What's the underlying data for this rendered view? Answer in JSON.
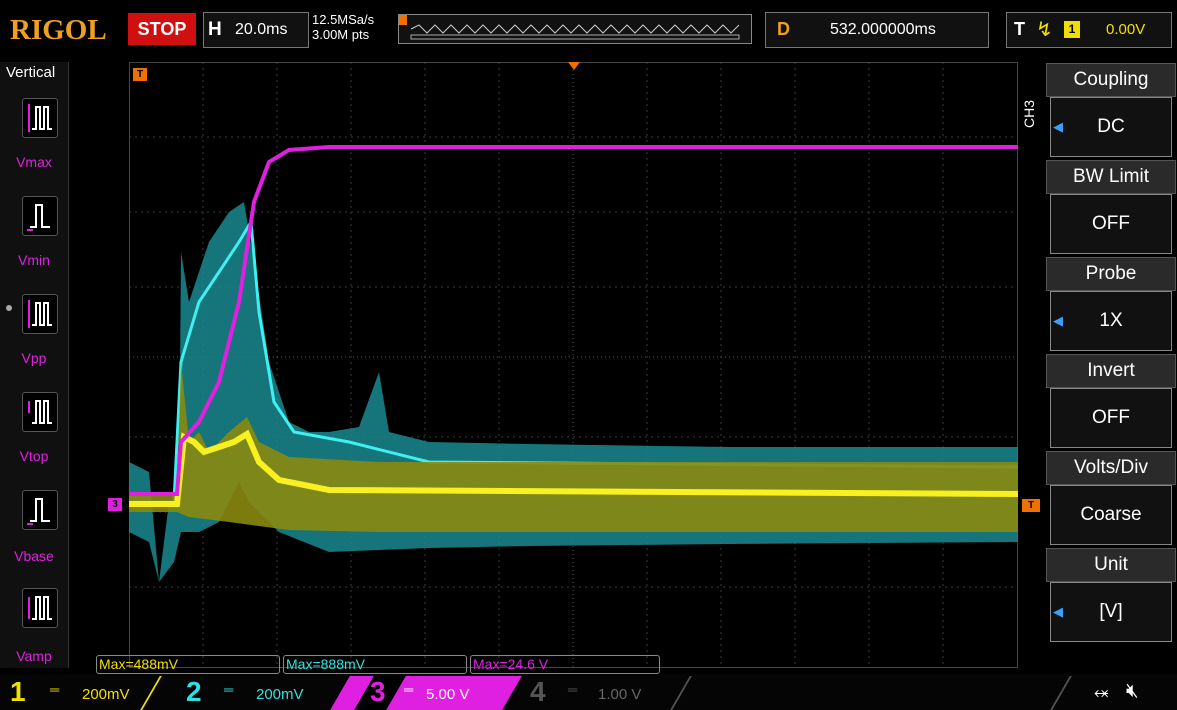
{
  "header": {
    "logo": "RIGOL",
    "run_state": "STOP",
    "timebase_letter": "H",
    "timebase": "20.0ms",
    "sample_rate": "12.5MSa/s",
    "memory_depth": "3.00M pts",
    "delay_letter": "D",
    "delay": "532.000000ms",
    "trigger_letter": "T",
    "trigger_slope_icon": "rising-edge-icon",
    "trigger_source": "1",
    "trigger_level": "0.00V"
  },
  "left_menu": {
    "title": "Vertical",
    "items": [
      {
        "label": "Vmax",
        "icon": "vmax-icon"
      },
      {
        "label": "Vmin",
        "icon": "vmin-icon"
      },
      {
        "label": "Vpp",
        "icon": "vpp-icon"
      },
      {
        "label": "Vtop",
        "icon": "vtop-icon"
      },
      {
        "label": "Vbase",
        "icon": "vbase-icon"
      },
      {
        "label": "Vamp",
        "icon": "vamp-icon"
      }
    ]
  },
  "right_menu": {
    "channel_tab": "CH3",
    "items": [
      {
        "header": "Coupling",
        "value": "DC",
        "has_arrow": true
      },
      {
        "header": "BW Limit",
        "value": "OFF",
        "has_arrow": false
      },
      {
        "header": "Probe",
        "value": "1X",
        "has_arrow": true
      },
      {
        "header": "Invert",
        "value": "OFF",
        "has_arrow": false
      },
      {
        "header": "Volts/Div",
        "value": "Coarse",
        "has_arrow": false
      },
      {
        "header": "Unit",
        "value": "[V]",
        "has_arrow": true
      }
    ]
  },
  "markers": {
    "trigger_position": "T",
    "trigger_level_marker": "T",
    "ch3_offset_marker": "3"
  },
  "measurements": [
    {
      "text": "Max=488mV",
      "color": "#f0e000"
    },
    {
      "text": "Max=888mV",
      "color": "#30e0e0"
    },
    {
      "text": "Max=24.6 V",
      "color": "#e020e0"
    }
  ],
  "channels": [
    {
      "num": "1",
      "coupling": "═",
      "scale": "200mV",
      "color": "#f0e000",
      "active": false
    },
    {
      "num": "2",
      "coupling": "═",
      "scale": "200mV",
      "color": "#30e0e0",
      "active": false
    },
    {
      "num": "3",
      "coupling": "═",
      "scale": "5.00 V",
      "color": "#e020e0",
      "active": true
    },
    {
      "num": "4",
      "coupling": "═",
      "scale": "1.00 V",
      "color": "#555555",
      "active": false
    }
  ],
  "status_icons": [
    "usb-icon",
    "speaker-mute-icon"
  ],
  "colors": {
    "ch1": "#f0e000",
    "ch2": "#30e0e0",
    "ch3": "#e020e0",
    "trigger": "#f07000",
    "logo": "#f0a020",
    "stop": "#d01010"
  }
}
